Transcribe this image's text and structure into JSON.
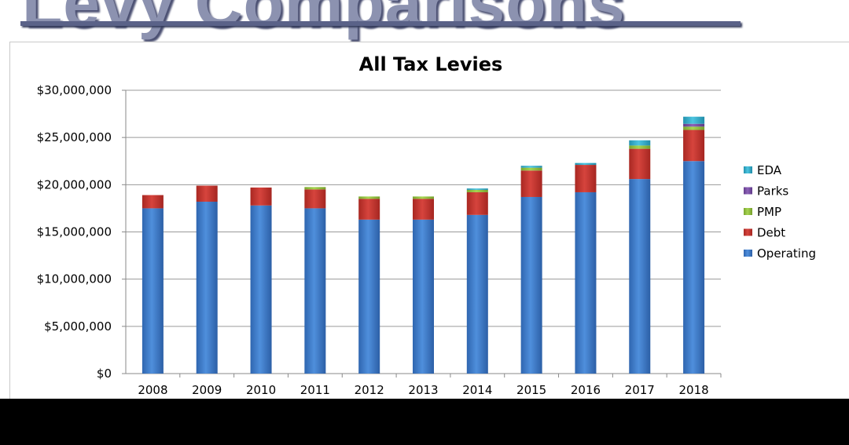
{
  "slide": {
    "title": "Levy Comparisons"
  },
  "colors": {
    "Operating": "#3f7ccb",
    "Debt": "#c5322c",
    "PMP": "#93c23e",
    "Parks": "#7a4fa6",
    "EDA": "#33b0ce",
    "axis_text": "#000000",
    "gridline": "#9a9a9a"
  },
  "chart_data": {
    "type": "bar",
    "stacked": true,
    "title": "All Tax Levies",
    "xlabel": "",
    "ylabel": "",
    "ylim": [
      0,
      30000000
    ],
    "yticks": [
      0,
      5000000,
      10000000,
      15000000,
      20000000,
      25000000,
      30000000
    ],
    "ytick_labels": [
      "$0",
      "$5,000,000",
      "$10,000,000",
      "$15,000,000",
      "$20,000,000",
      "$25,000,000",
      "$30,000,000"
    ],
    "categories": [
      "2008",
      "2009",
      "2010",
      "2011",
      "2012",
      "2013",
      "2014",
      "2015",
      "2016",
      "2017",
      "2018"
    ],
    "series": [
      {
        "name": "Operating",
        "values": [
          17500000,
          18200000,
          17800000,
          17500000,
          16300000,
          16300000,
          16800000,
          18700000,
          19200000,
          20600000,
          22500000
        ]
      },
      {
        "name": "Debt",
        "values": [
          1400000,
          1700000,
          1900000,
          2000000,
          2200000,
          2200000,
          2400000,
          2800000,
          2900000,
          3200000,
          3300000
        ]
      },
      {
        "name": "PMP",
        "values": [
          0,
          0,
          0,
          250000,
          250000,
          250000,
          250000,
          300000,
          0,
          350000,
          350000
        ]
      },
      {
        "name": "Parks",
        "values": [
          0,
          0,
          0,
          0,
          0,
          0,
          0,
          0,
          0,
          0,
          300000
        ]
      },
      {
        "name": "EDA",
        "values": [
          0,
          0,
          0,
          0,
          0,
          0,
          150000,
          200000,
          200000,
          550000,
          750000
        ]
      }
    ],
    "legend": {
      "placement": "right",
      "order": [
        "EDA",
        "Parks",
        "PMP",
        "Debt",
        "Operating"
      ]
    },
    "grid": true
  }
}
